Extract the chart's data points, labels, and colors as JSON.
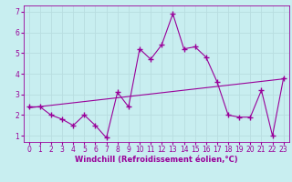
{
  "xlabel": "Windchill (Refroidissement éolien,°C)",
  "background_color": "#c8eef0",
  "line_color": "#990099",
  "grid_color": "#b8dde0",
  "xlim": [
    -0.5,
    23.5
  ],
  "ylim": [
    0.7,
    7.3
  ],
  "x_ticks": [
    0,
    1,
    2,
    3,
    4,
    5,
    6,
    7,
    8,
    9,
    10,
    11,
    12,
    13,
    14,
    15,
    16,
    17,
    18,
    19,
    20,
    21,
    22,
    23
  ],
  "y_ticks": [
    1,
    2,
    3,
    4,
    5,
    6,
    7
  ],
  "data_x": [
    0,
    1,
    2,
    3,
    4,
    5,
    6,
    7,
    8,
    9,
    10,
    11,
    12,
    13,
    14,
    15,
    16,
    17,
    18,
    19,
    20,
    21,
    22,
    23
  ],
  "data_y": [
    2.4,
    2.4,
    2.0,
    1.8,
    1.5,
    2.0,
    1.5,
    0.9,
    3.1,
    2.4,
    5.2,
    4.7,
    5.4,
    6.9,
    5.2,
    5.3,
    4.8,
    3.6,
    2.0,
    1.9,
    1.9,
    3.2,
    1.0,
    3.8
  ],
  "trend_x": [
    0,
    23
  ],
  "trend_y": [
    2.35,
    3.75
  ],
  "marker": "+",
  "marker_size": 4,
  "linewidth": 0.8,
  "xlabel_fontsize": 6,
  "tick_fontsize": 5.5
}
